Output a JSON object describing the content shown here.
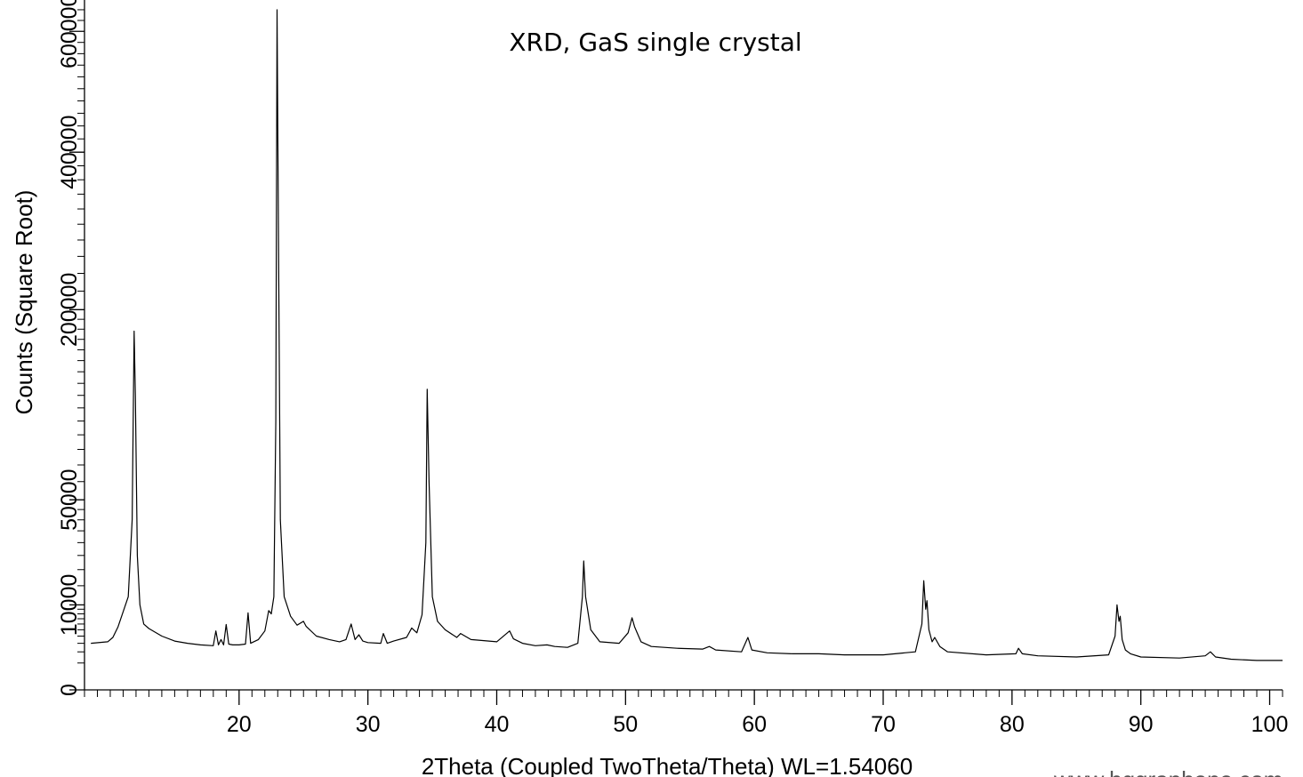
{
  "chart_data": {
    "type": "line",
    "title": "XRD, GaS single crystal",
    "xlabel": "2Theta (Coupled TwoTheta/Theta) WL=1.54060",
    "ylabel": "Counts (Square Root)",
    "y_scale": "sqrt",
    "xlim": [
      8,
      101
    ],
    "ylim": [
      0,
      650000
    ],
    "x_ticks": [
      20,
      30,
      40,
      50,
      60,
      70,
      80,
      90,
      100
    ],
    "x_tick_labels": [
      "20",
      "30",
      "40",
      "50",
      "60",
      "70",
      "80",
      "90",
      "100"
    ],
    "y_ticks": [
      0,
      10000,
      50000,
      200000,
      400000,
      600000
    ],
    "y_tick_labels": [
      "0",
      "10000",
      "50000",
      "200000",
      "400000",
      "600000"
    ],
    "grid": false,
    "legend": "none",
    "line_color": "#000000",
    "series": [
      {
        "x": [
          8.5,
          9.8,
          10.2,
          10.6,
          11.4,
          11.7,
          11.85,
          11.95,
          12.1,
          12.3,
          12.6,
          13.0,
          14.0,
          15.0,
          16.0,
          17.0,
          18.0,
          18.2,
          18.4,
          18.6,
          18.8,
          19.0,
          19.2,
          19.5,
          20.0,
          20.5,
          20.7,
          20.9,
          21.5,
          22.0,
          22.3,
          22.5,
          22.7,
          22.85,
          22.95,
          23.05,
          23.2,
          23.5,
          24.0,
          24.5,
          25.0,
          25.2,
          26.0,
          27.0,
          27.8,
          28.3,
          28.7,
          29.0,
          29.3,
          29.6,
          30.0,
          31.0,
          31.2,
          31.5,
          32.0,
          33.0,
          33.4,
          33.8,
          34.2,
          34.5,
          34.6,
          34.75,
          35.0,
          35.4,
          36.0,
          36.9,
          37.2,
          38.0,
          40.0,
          41.0,
          41.3,
          42.0,
          43.0,
          43.9,
          44.5,
          45.5,
          46.3,
          46.65,
          46.75,
          46.9,
          47.3,
          48.0,
          49.5,
          50.2,
          50.5,
          50.7,
          51.2,
          52.0,
          54.0,
          56.0,
          56.5,
          57.0,
          59.0,
          59.5,
          59.8,
          61.0,
          63.0,
          65.0,
          67.0,
          70.0,
          72.5,
          73.0,
          73.15,
          73.3,
          73.4,
          73.55,
          73.8,
          74.0,
          74.4,
          75.0,
          78.0,
          80.3,
          80.5,
          80.8,
          82.0,
          85.0,
          87.5,
          88.0,
          88.15,
          88.3,
          88.4,
          88.55,
          88.8,
          89.2,
          90.0,
          93.0,
          95.0,
          95.4,
          95.8,
          97.0,
          99.0,
          101.0
        ],
        "y": [
          3000,
          3200,
          3800,
          5500,
          12000,
          40000,
          178000,
          120000,
          25000,
          10000,
          6000,
          5200,
          4000,
          3300,
          3000,
          2800,
          2700,
          4800,
          2800,
          3500,
          2800,
          5900,
          2900,
          2800,
          2800,
          2900,
          8200,
          3000,
          3500,
          4800,
          8700,
          8000,
          12000,
          100000,
          640000,
          300000,
          40000,
          12000,
          7500,
          5800,
          6500,
          5600,
          4000,
          3500,
          3200,
          3500,
          6000,
          3500,
          4200,
          3300,
          3100,
          3000,
          4400,
          3000,
          3300,
          3800,
          5300,
          4500,
          7800,
          30000,
          125000,
          60000,
          12000,
          6500,
          5000,
          3800,
          4400,
          3500,
          3200,
          4800,
          3600,
          3000,
          2700,
          2800,
          2600,
          2500,
          3000,
          12000,
          23000,
          12000,
          5000,
          3200,
          3000,
          4500,
          7200,
          5500,
          3200,
          2600,
          2400,
          2300,
          2600,
          2200,
          2000,
          3800,
          2200,
          1900,
          1800,
          1800,
          1700,
          1700,
          2000,
          6000,
          16500,
          9000,
          11000,
          5000,
          3200,
          3800,
          2600,
          2000,
          1700,
          1800,
          2400,
          1800,
          1600,
          1500,
          1700,
          4000,
          10000,
          6500,
          7500,
          3500,
          2200,
          1800,
          1500,
          1400,
          1600,
          2000,
          1500,
          1300,
          1200,
          1200
        ]
      }
    ]
  },
  "watermark": "www.bggraphene.com"
}
